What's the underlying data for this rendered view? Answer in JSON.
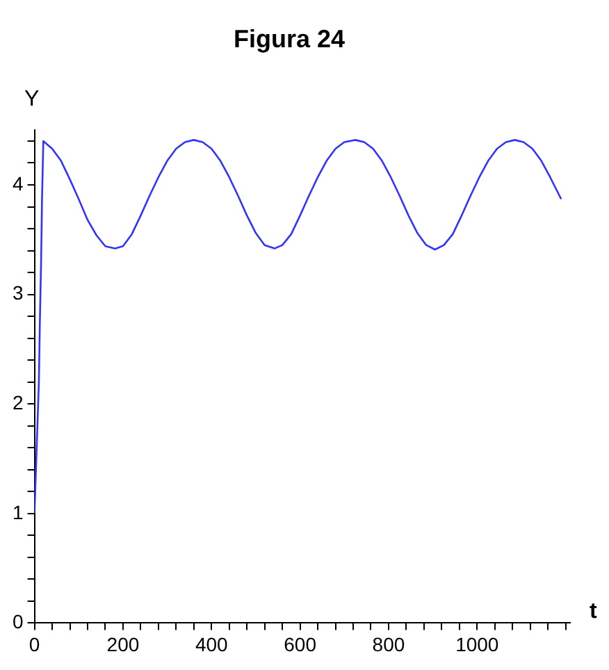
{
  "chart_data": {
    "type": "line",
    "title": "Figura 24",
    "xlabel": "t",
    "ylabel": "Y",
    "xlim": [
      0,
      1210
    ],
    "ylim": [
      0,
      4.5
    ],
    "xticks": [
      0,
      {
        "value": 40,
        "label": null
      },
      {
        "value": 80,
        "label": null
      },
      {
        "value": 120,
        "label": null
      },
      {
        "value": 160,
        "label": null
      },
      200,
      {
        "value": 240,
        "label": null
      },
      {
        "value": 280,
        "label": null
      },
      {
        "value": 320,
        "label": null
      },
      {
        "value": 360,
        "label": null
      },
      400,
      {
        "value": 440,
        "label": null
      },
      {
        "value": 480,
        "label": null
      },
      {
        "value": 520,
        "label": null
      },
      {
        "value": 560,
        "label": null
      },
      600,
      {
        "value": 640,
        "label": null
      },
      {
        "value": 680,
        "label": null
      },
      {
        "value": 720,
        "label": null
      },
      {
        "value": 760,
        "label": null
      },
      800,
      {
        "value": 840,
        "label": null
      },
      {
        "value": 880,
        "label": null
      },
      {
        "value": 920,
        "label": null
      },
      {
        "value": 960,
        "label": null
      },
      1000,
      {
        "value": 1040,
        "label": null
      },
      {
        "value": 1080,
        "label": null
      },
      {
        "value": 1120,
        "label": null
      },
      {
        "value": 1160,
        "label": null
      },
      {
        "value": 1200,
        "label": null
      }
    ],
    "yticks": [
      0,
      {
        "value": 0.2,
        "label": null
      },
      {
        "value": 0.4,
        "label": null
      },
      {
        "value": 0.6,
        "label": null
      },
      {
        "value": 0.8,
        "label": null
      },
      1,
      {
        "value": 1.2,
        "label": null
      },
      {
        "value": 1.4,
        "label": null
      },
      {
        "value": 1.6,
        "label": null
      },
      {
        "value": 1.8,
        "label": null
      },
      2,
      {
        "value": 2.2,
        "label": null
      },
      {
        "value": 2.4,
        "label": null
      },
      {
        "value": 2.6,
        "label": null
      },
      {
        "value": 2.8,
        "label": null
      },
      3,
      {
        "value": 3.2,
        "label": null
      },
      {
        "value": 3.4,
        "label": null
      },
      {
        "value": 3.6,
        "label": null
      },
      {
        "value": 3.8,
        "label": null
      },
      4,
      {
        "value": 4.2,
        "label": null
      },
      {
        "value": 4.4,
        "label": null
      }
    ],
    "grid": false,
    "legend": false,
    "marker": "none",
    "line_style": "solid",
    "x": [
      0,
      5,
      10,
      12,
      15,
      17,
      20,
      40,
      60,
      80,
      100,
      120,
      140,
      160,
      182,
      200,
      220,
      240,
      260,
      280,
      300,
      320,
      340,
      360,
      380,
      400,
      420,
      440,
      460,
      480,
      500,
      520,
      543,
      560,
      580,
      600,
      620,
      640,
      660,
      680,
      700,
      725,
      745,
      765,
      785,
      805,
      825,
      845,
      865,
      885,
      905,
      925,
      945,
      965,
      985,
      1005,
      1025,
      1045,
      1065,
      1085,
      1105,
      1125,
      1145,
      1165,
      1190
    ],
    "series": [
      {
        "color": "#3333ff",
        "values": [
          1,
          1.6,
          2.2,
          2.7,
          3.3,
          3.85,
          4.4,
          4.33,
          4.22,
          4.05,
          3.87,
          3.68,
          3.54,
          3.44,
          3.42,
          3.44,
          3.55,
          3.72,
          3.9,
          4.07,
          4.22,
          4.33,
          4.39,
          4.41,
          4.39,
          4.33,
          4.22,
          4.07,
          3.9,
          3.72,
          3.56,
          3.45,
          3.42,
          3.45,
          3.55,
          3.72,
          3.9,
          4.07,
          4.22,
          4.33,
          4.39,
          4.41,
          4.39,
          4.33,
          4.22,
          4.07,
          3.9,
          3.72,
          3.56,
          3.45,
          3.41,
          3.45,
          3.55,
          3.72,
          3.9,
          4.07,
          4.22,
          4.33,
          4.39,
          4.41,
          4.39,
          4.33,
          4.22,
          4.07,
          3.87
        ]
      }
    ]
  }
}
